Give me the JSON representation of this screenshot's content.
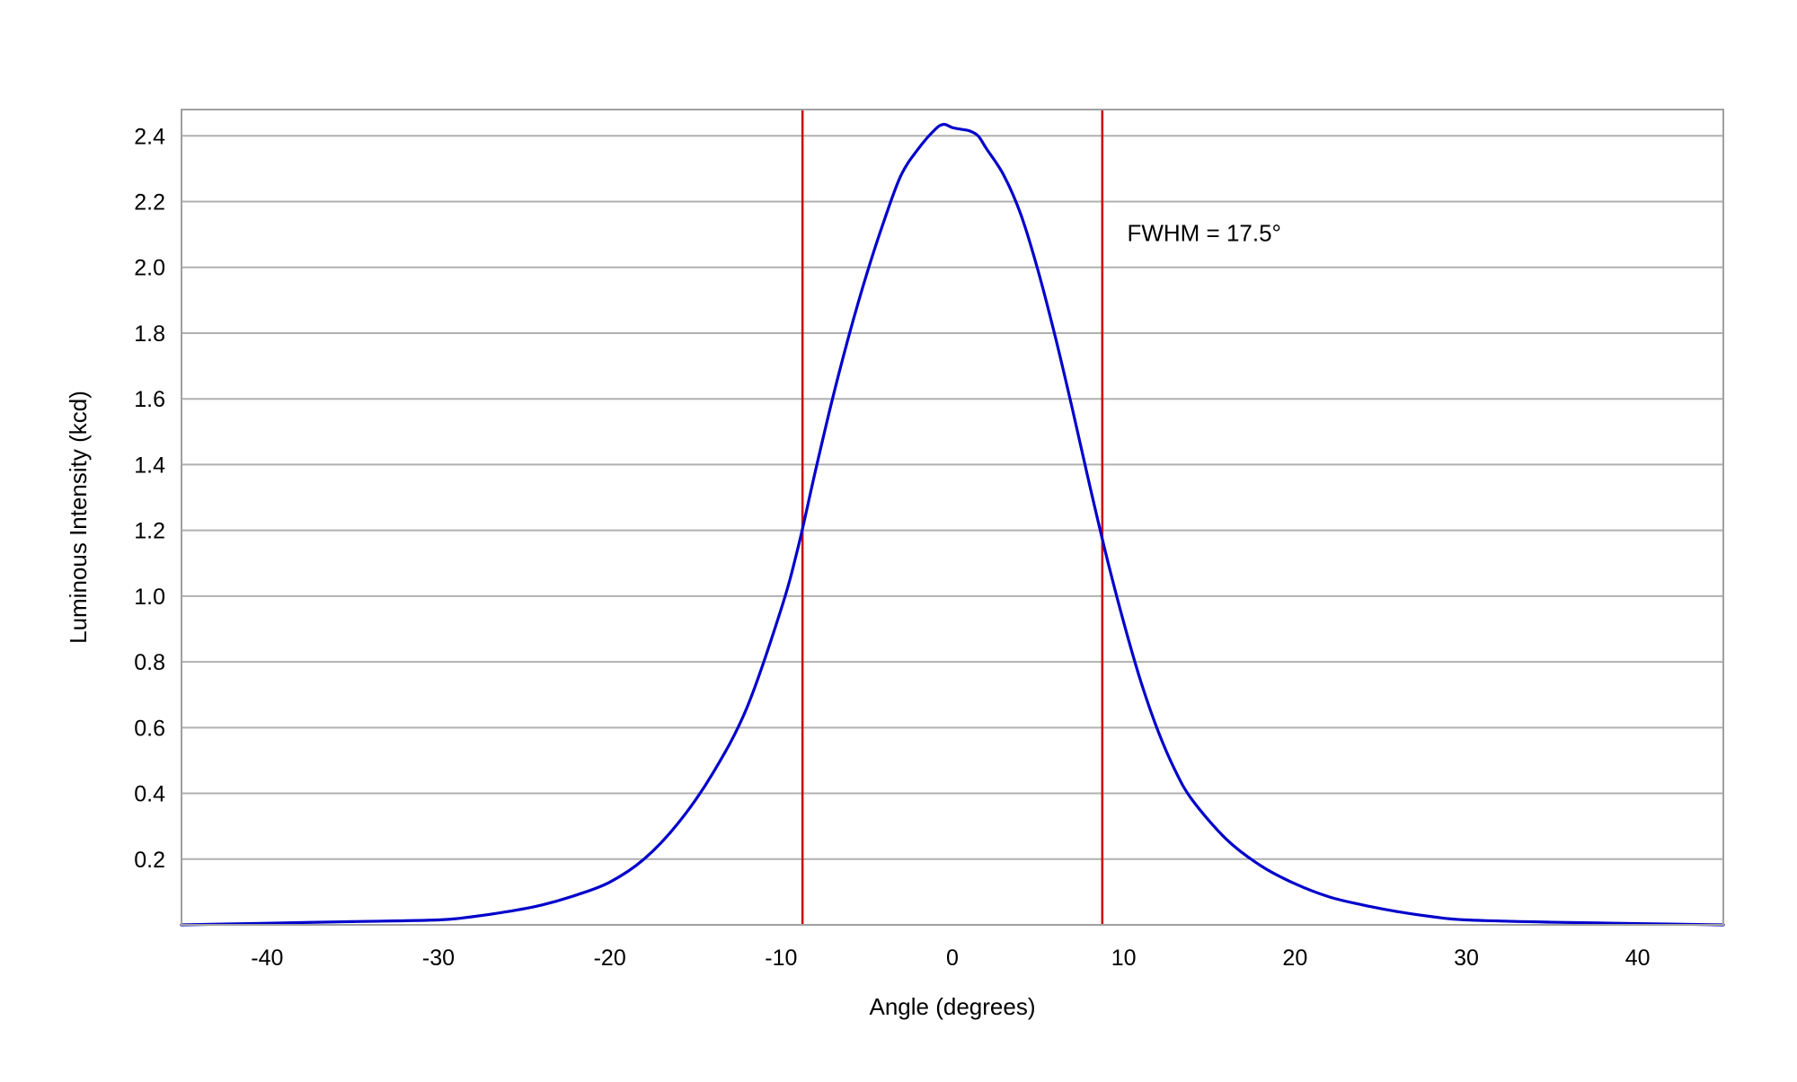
{
  "chart_data": {
    "type": "line",
    "title": "",
    "xlabel": "Angle (degrees)",
    "ylabel": "Luminous Intensity (kcd)",
    "xlim": [
      -45,
      45
    ],
    "ylim": [
      0,
      2.48
    ],
    "x_ticks": [
      -40,
      -30,
      -20,
      -10,
      0,
      10,
      20,
      30,
      40
    ],
    "y_ticks": [
      0.2,
      0.4,
      0.6,
      0.8,
      1.0,
      1.2,
      1.4,
      1.6,
      1.8,
      2.0,
      2.2,
      2.4
    ],
    "grid": "horizontal",
    "legend": "none",
    "colors": {
      "curve": "#0000cc",
      "markers": "#cc0000",
      "grid": "#b0b0b0",
      "frame": "#a0a0a0"
    },
    "series": [
      {
        "x": [
          -45,
          -40,
          -35,
          -30,
          -28,
          -26,
          -24,
          -22,
          -20,
          -18,
          -16,
          -14,
          -12,
          -10,
          -9,
          -8,
          -7,
          -6,
          -5,
          -4,
          -3,
          -2,
          -1,
          -0.5,
          0,
          0.5,
          1,
          1.5,
          2,
          3,
          4,
          5,
          6,
          7,
          8,
          9,
          10,
          11,
          12,
          13,
          14,
          16,
          18,
          20,
          22,
          24,
          26,
          28,
          30,
          35,
          40,
          45
        ],
        "y": [
          0.0,
          0.005,
          0.01,
          0.015,
          0.025,
          0.04,
          0.06,
          0.09,
          0.13,
          0.2,
          0.31,
          0.46,
          0.66,
          0.96,
          1.15,
          1.38,
          1.6,
          1.8,
          1.98,
          2.14,
          2.28,
          2.36,
          2.42,
          2.435,
          2.425,
          2.42,
          2.415,
          2.4,
          2.36,
          2.28,
          2.16,
          1.99,
          1.79,
          1.57,
          1.34,
          1.12,
          0.92,
          0.74,
          0.59,
          0.47,
          0.38,
          0.26,
          0.18,
          0.125,
          0.085,
          0.06,
          0.04,
          0.025,
          0.015,
          0.008,
          0.004,
          0.0
        ]
      }
    ],
    "vertical_markers": [
      -8.75,
      8.75
    ],
    "annotations": [
      {
        "text": "FWHM = 17.5°",
        "x": 10.2,
        "y": 2.08
      }
    ]
  }
}
